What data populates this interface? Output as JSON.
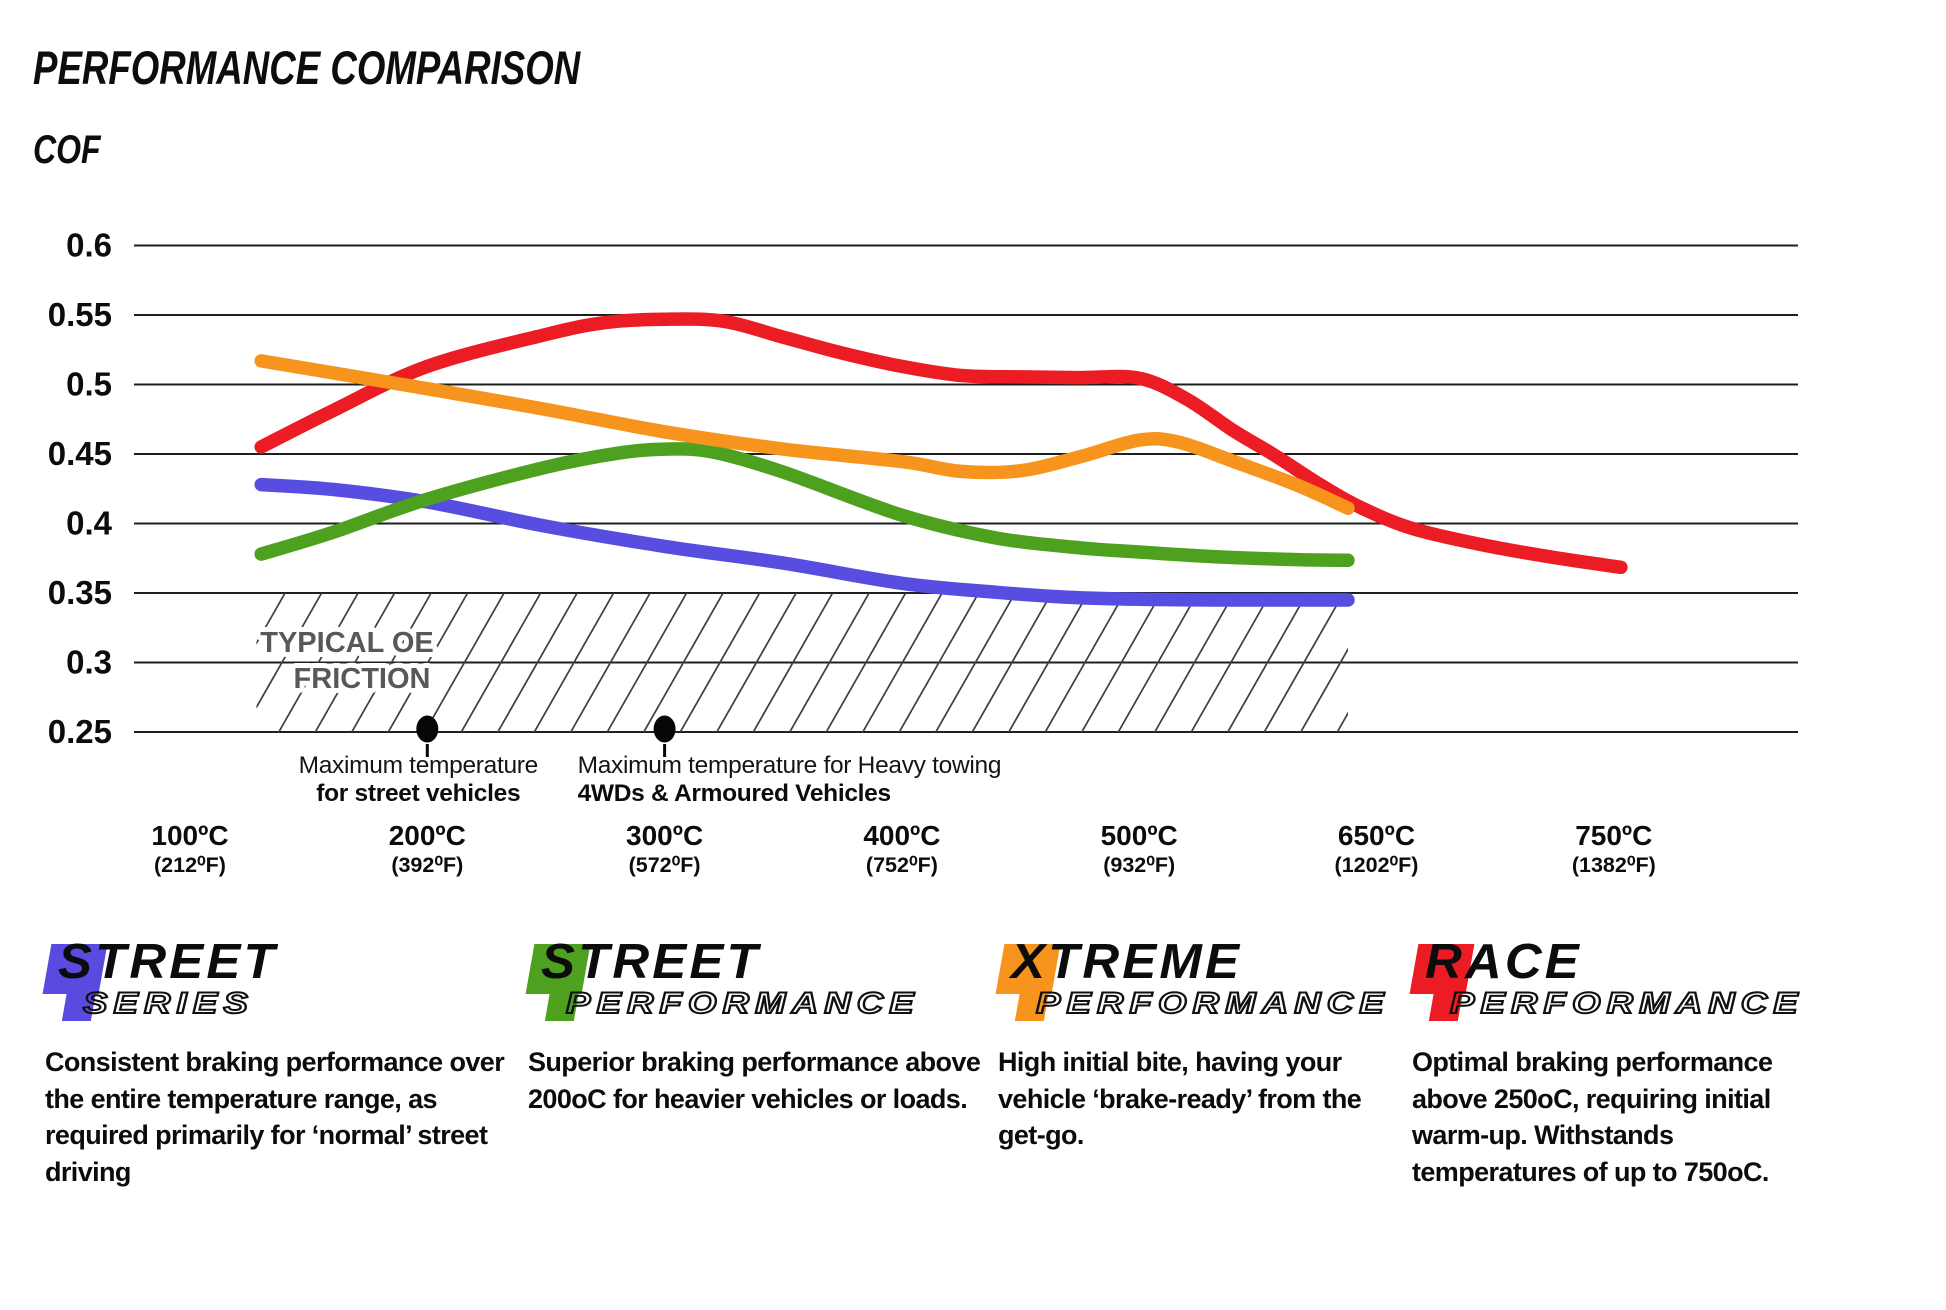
{
  "title": "PERFORMANCE COMPARISON",
  "chart_data": {
    "type": "line",
    "title": "PERFORMANCE COMPARISON",
    "ylabel": "COF",
    "xlabel": "",
    "ylim": [
      0.25,
      0.6
    ],
    "grid": "horizontal",
    "legend_position": "bottom",
    "y_ticks": [
      "0.6",
      "0.55",
      "0.5",
      "0.45",
      "0.4",
      "0.35",
      "0.3",
      "0.25"
    ],
    "x_ticks": [
      {
        "t": 100,
        "c": "100ºC",
        "f": "(212⁰F)"
      },
      {
        "t": 200,
        "c": "200ºC",
        "f": "(392⁰F)"
      },
      {
        "t": 300,
        "c": "300ºC",
        "f": "(572⁰F)"
      },
      {
        "t": 400,
        "c": "400ºC",
        "f": "(752⁰F)"
      },
      {
        "t": 500,
        "c": "500ºC",
        "f": "(932⁰F)"
      },
      {
        "t": 650,
        "c": "650ºC",
        "f": "(1202⁰F)"
      },
      {
        "t": 750,
        "c": "750ºC",
        "f": "(1382⁰F)"
      }
    ],
    "series": [
      {
        "name": "Street Series",
        "color": "#574de0",
        "points": [
          [
            130,
            0.428
          ],
          [
            160,
            0.4245
          ],
          [
            200,
            0.4155
          ],
          [
            250,
            0.398
          ],
          [
            300,
            0.3835
          ],
          [
            350,
            0.3715
          ],
          [
            400,
            0.357
          ],
          [
            440,
            0.3505
          ],
          [
            470,
            0.347
          ],
          [
            500,
            0.3455
          ],
          [
            550,
            0.345
          ],
          [
            600,
            0.345
          ],
          [
            632,
            0.345
          ]
        ]
      },
      {
        "name": "Street Performance",
        "color": "#4da11f",
        "points": [
          [
            130,
            0.378
          ],
          [
            160,
            0.3935
          ],
          [
            200,
            0.4175
          ],
          [
            250,
            0.4405
          ],
          [
            280,
            0.4505
          ],
          [
            300,
            0.4535
          ],
          [
            320,
            0.4515
          ],
          [
            350,
            0.437
          ],
          [
            400,
            0.406
          ],
          [
            440,
            0.3895
          ],
          [
            475,
            0.3825
          ],
          [
            500,
            0.3795
          ],
          [
            550,
            0.376
          ],
          [
            600,
            0.374
          ],
          [
            632,
            0.3735
          ]
        ]
      },
      {
        "name": "Race Performance",
        "color": "#ec1c24",
        "points": [
          [
            130,
            0.455
          ],
          [
            160,
            0.481
          ],
          [
            200,
            0.513
          ],
          [
            250,
            0.536
          ],
          [
            275,
            0.5445
          ],
          [
            300,
            0.547
          ],
          [
            325,
            0.5455
          ],
          [
            350,
            0.534
          ],
          [
            375,
            0.5225
          ],
          [
            400,
            0.513
          ],
          [
            425,
            0.5065
          ],
          [
            450,
            0.5055
          ],
          [
            475,
            0.505
          ],
          [
            500,
            0.5045
          ],
          [
            530,
            0.4895
          ],
          [
            560,
            0.4665
          ],
          [
            585,
            0.4495
          ],
          [
            615,
            0.4275
          ],
          [
            640,
            0.4115
          ],
          [
            665,
            0.3965
          ],
          [
            695,
            0.3845
          ],
          [
            725,
            0.3755
          ],
          [
            753,
            0.3685
          ]
        ]
      },
      {
        "name": "Xtreme Performance",
        "color": "#f7941d",
        "points": [
          [
            130,
            0.517
          ],
          [
            200,
            0.497
          ],
          [
            250,
            0.482
          ],
          [
            300,
            0.466
          ],
          [
            350,
            0.4535
          ],
          [
            400,
            0.4445
          ],
          [
            425,
            0.4375
          ],
          [
            450,
            0.438
          ],
          [
            475,
            0.448
          ],
          [
            500,
            0.46
          ],
          [
            525,
            0.4585
          ],
          [
            560,
            0.4445
          ],
          [
            600,
            0.4275
          ],
          [
            632,
            0.411
          ]
        ]
      }
    ],
    "oe_band": {
      "lines": [
        "TYPICAL OE",
        "FRICTION"
      ],
      "cof_top": 0.35,
      "cof_bottom": 0.25,
      "t_start": 128,
      "t_end": 632
    },
    "annotations": [
      {
        "t": 200,
        "cof": 0.25,
        "align": "center",
        "lines": [
          "Maximum temperature",
          "for street vehicles"
        ]
      },
      {
        "t": 300,
        "cof": 0.25,
        "align": "left",
        "lines": [
          "Maximum temperature for Heavy towing",
          "4WDs & Armoured Vehicles"
        ]
      }
    ]
  },
  "legend": [
    {
      "id": "street-series",
      "word": "STREET",
      "sub": "SERIES",
      "color": "#5a4be0",
      "desc": "Consistent braking performance over the entire temperature range, as required primarily for ‘normal’ street driving"
    },
    {
      "id": "street-performance",
      "word": "STREET",
      "sub": "PERFORMANCE",
      "color": "#4da11f",
      "desc": "Superior braking performance above 200oC for heavier vehicles or loads."
    },
    {
      "id": "xtreme-performance",
      "word": "XTREME",
      "sub": "PERFORMANCE",
      "color": "#f7941d",
      "desc": "High initial bite, having your vehicle ‘brake-ready’ from the get-go."
    },
    {
      "id": "race-performance",
      "word": "RACE",
      "sub": "PERFORMANCE",
      "color": "#ec1c24",
      "desc": "Optimal braking performance above 250oC, requiring initial warm-up. Withstands temperatures of up to 750oC."
    }
  ]
}
